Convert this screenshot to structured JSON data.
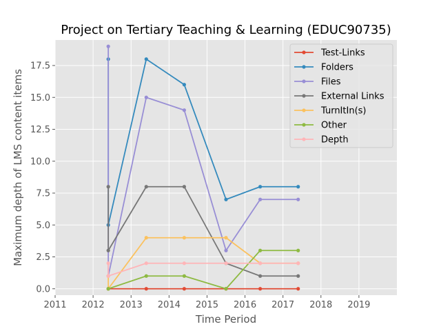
{
  "chart_data": {
    "type": "line",
    "title": "Project on Tertiary Teaching & Learning (EDUC90735)",
    "xlabel": "Time Period",
    "ylabel": "Maximum depth of LMS content items",
    "xlim": [
      2011,
      2020
    ],
    "ylim": [
      -0.5,
      19.5
    ],
    "xticks": [
      2011,
      2012,
      2013,
      2014,
      2015,
      2016,
      2017,
      2018,
      2019
    ],
    "yticks": [
      0.0,
      2.5,
      5.0,
      7.5,
      10.0,
      12.5,
      15.0,
      17.5
    ],
    "grid": true,
    "legend_position": "top-right",
    "series": [
      {
        "name": "Test-Links",
        "color": "#e24a33",
        "x": [
          2012.4,
          2012.4,
          2013.4,
          2014.4,
          2015.5,
          2016.4,
          2017.4
        ],
        "y": [
          0,
          0,
          0,
          0,
          0,
          0,
          0
        ]
      },
      {
        "name": "Folders",
        "color": "#348abd",
        "x": [
          2012.4,
          2012.4,
          2013.4,
          2014.4,
          2015.5,
          2016.4,
          2017.4
        ],
        "y": [
          18,
          5,
          18,
          16,
          7,
          8,
          8
        ]
      },
      {
        "name": "Files",
        "color": "#988ed5",
        "x": [
          2012.4,
          2012.4,
          2013.4,
          2014.4,
          2015.5,
          2016.4,
          2017.4
        ],
        "y": [
          19,
          1,
          15,
          14,
          3,
          7,
          7
        ]
      },
      {
        "name": "External Links",
        "color": "#777777",
        "x": [
          2012.4,
          2012.4,
          2013.4,
          2014.4,
          2015.5,
          2016.4,
          2017.4
        ],
        "y": [
          8,
          3,
          8,
          8,
          2,
          1,
          1
        ]
      },
      {
        "name": "TurnItIn(s)",
        "color": "#fbc15e",
        "x": [
          2012.4,
          2012.4,
          2013.4,
          2014.4,
          2015.5,
          2016.4,
          2017.4
        ],
        "y": [
          1,
          0,
          4,
          4,
          4,
          2,
          2
        ]
      },
      {
        "name": "Other",
        "color": "#8eba42",
        "x": [
          2012.4,
          2012.4,
          2013.4,
          2014.4,
          2015.5,
          2016.4,
          2017.4
        ],
        "y": [
          0,
          0,
          1,
          1,
          0,
          3,
          3
        ]
      },
      {
        "name": "Depth",
        "color": "#ffb5b8",
        "x": [
          2012.4,
          2012.4,
          2013.4,
          2014.4,
          2015.5,
          2016.4,
          2017.4
        ],
        "y": [
          2,
          1,
          2,
          2,
          2,
          2,
          2
        ]
      }
    ]
  }
}
